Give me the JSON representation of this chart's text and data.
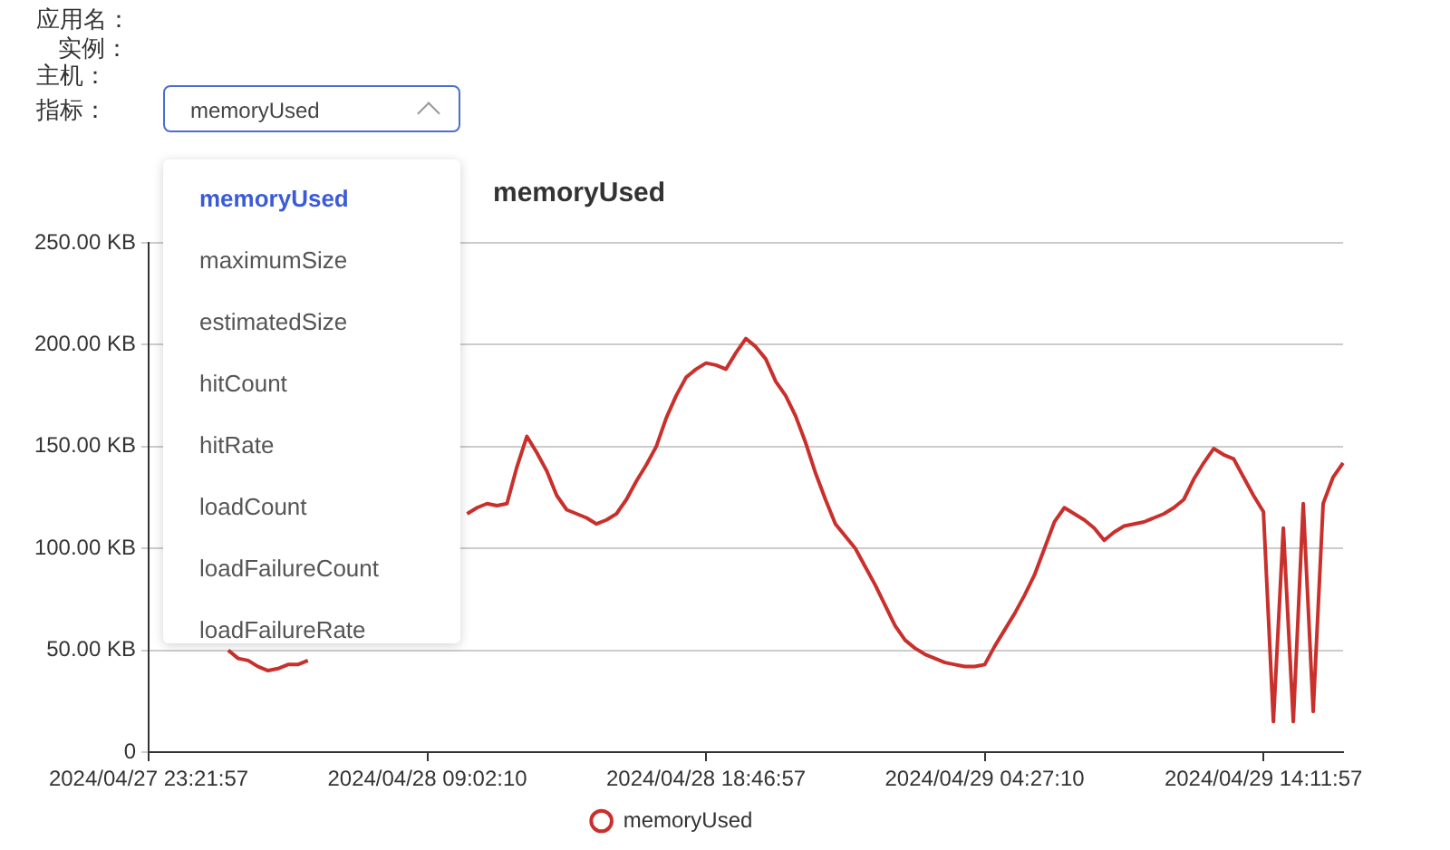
{
  "chart_data": {
    "type": "line",
    "title": "memoryUsed",
    "annotations": [
      "应用名：",
      "实例：",
      "主机：",
      "指标：",
      "memoryUsed",
      "memoryUsed",
      "maximumSize",
      "estimatedSize",
      "hitCount",
      "hitRate",
      "loadCount",
      "loadFailureCount",
      "loadFailureRate"
    ],
    "categories": [
      "2024/04/27 23:21:57",
      null,
      null,
      null,
      null,
      null,
      null,
      null,
      null,
      null,
      null,
      null,
      null,
      null,
      null,
      null,
      null,
      null,
      null,
      null,
      null,
      null,
      null,
      null,
      null,
      null,
      null,
      null,
      "2024/04/28 09:02:10",
      null,
      null,
      null,
      null,
      null,
      null,
      null,
      null,
      null,
      null,
      null,
      null,
      null,
      null,
      null,
      null,
      null,
      null,
      null,
      null,
      null,
      null,
      null,
      null,
      null,
      null,
      null,
      "2024/04/28 18:46:57",
      null,
      null,
      null,
      null,
      null,
      null,
      null,
      null,
      null,
      null,
      null,
      null,
      null,
      null,
      null,
      null,
      null,
      null,
      null,
      null,
      null,
      null,
      null,
      null,
      null,
      null,
      null,
      "2024/04/29 04:27:10",
      null,
      null,
      null,
      null,
      null,
      null,
      null,
      null,
      null,
      null,
      null,
      null,
      null,
      null,
      null,
      null,
      null,
      null,
      null,
      null,
      null,
      null,
      null,
      null,
      null,
      null,
      null,
      "2024/04/29 14:11:57",
      null,
      null,
      null,
      null,
      null,
      null,
      null,
      null
    ],
    "series": [
      {
        "name": "memoryUsed",
        "color": "#c9302c",
        "values": [
          null,
          null,
          null,
          null,
          null,
          null,
          null,
          null,
          50,
          46,
          45,
          42,
          40,
          41,
          43,
          43,
          45,
          null,
          null,
          null,
          null,
          null,
          null,
          null,
          null,
          null,
          null,
          null,
          null,
          null,
          null,
          null,
          117,
          120,
          122,
          121,
          122,
          140,
          155,
          147,
          138,
          126,
          119,
          117,
          115,
          112,
          114,
          117,
          124,
          133,
          141,
          150,
          164,
          175,
          184,
          188,
          191,
          190,
          188,
          196,
          203,
          199,
          193,
          182,
          175,
          165,
          152,
          137,
          124,
          112,
          106,
          100,
          91,
          82,
          72,
          62,
          55,
          51,
          48,
          46,
          44,
          43,
          42,
          42,
          43,
          52,
          60,
          68,
          77,
          87,
          100,
          113,
          120,
          117,
          114,
          110,
          104,
          108,
          111,
          112,
          113,
          115,
          117,
          120,
          124,
          134,
          142,
          149,
          146,
          144,
          135,
          126,
          118,
          15,
          110,
          15,
          122,
          20,
          122,
          135,
          142
        ]
      }
    ],
    "ylim": [
      0,
      250
    ],
    "yticks": [
      0,
      {
        "value": 50,
        "label": "50.00 KB"
      },
      {
        "value": 100,
        "label": "100.00 KB"
      },
      {
        "value": 150,
        "label": "150.00 KB"
      },
      {
        "value": 200,
        "label": "200.00 KB"
      },
      {
        "value": 250,
        "label": "250.00 KB"
      }
    ],
    "grid": "y",
    "legend": "bottom",
    "marker": "none",
    "line_style": "solid"
  }
}
